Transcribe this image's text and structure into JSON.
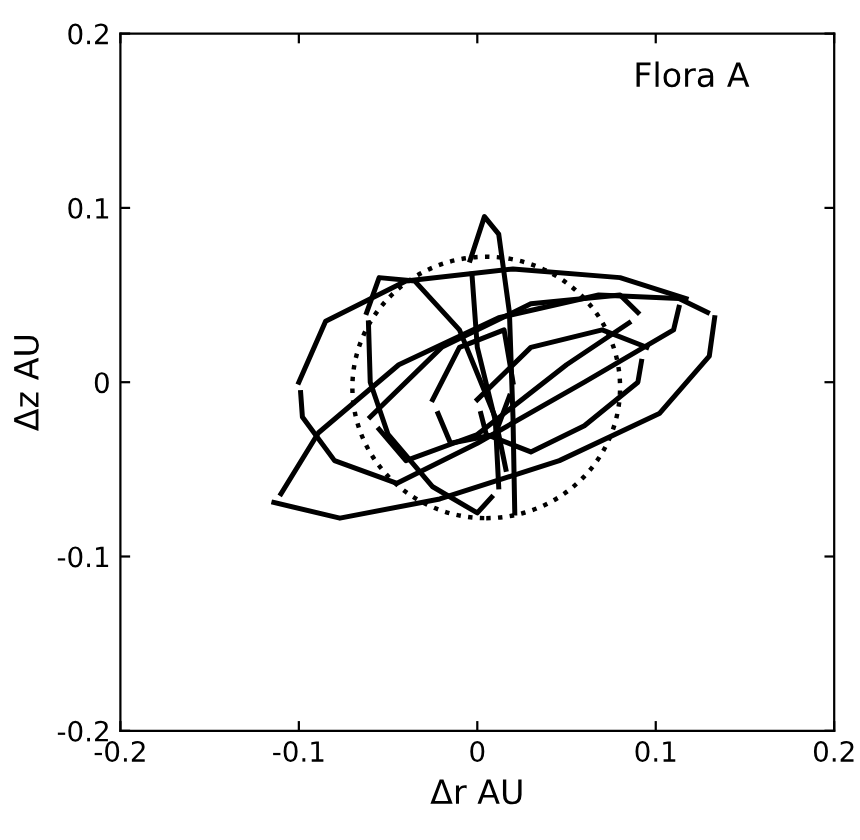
{
  "chart_data": {
    "type": "line",
    "xlabel": "Δr AU",
    "ylabel": "Δz AU",
    "annotations": [
      "Flora A"
    ],
    "xlim": [
      -0.2,
      0.2
    ],
    "ylim": [
      -0.2,
      0.2
    ],
    "xticks": [
      -0.2,
      -0.1,
      0,
      0.1,
      0.2
    ],
    "yticks": [
      -0.2,
      -0.1,
      0,
      0.1,
      0.2
    ],
    "grid": false,
    "legend": false,
    "marker": "none",
    "series": [
      {
        "color": "#000000",
        "line_style": "solid",
        "x": [
          -0.114,
          -0.077,
          -0.021,
          0.046,
          0.102,
          0.13,
          0.133
        ],
        "values": [
          -0.069,
          -0.078,
          -0.067,
          -0.045,
          -0.018,
          0.015,
          0.037
        ]
      },
      {
        "color": "#000000",
        "line_style": "solid",
        "x": [
          -0.11,
          -0.089,
          -0.044,
          0.012,
          0.068,
          0.113,
          0.129
        ],
        "values": [
          -0.064,
          -0.029,
          0.01,
          0.037,
          0.05,
          0.048,
          0.04
        ]
      },
      {
        "color": "#000000",
        "line_style": "solid",
        "x": [
          -0.1,
          -0.085,
          -0.04,
          0.02,
          0.08,
          0.117
        ],
        "values": [
          0.0,
          0.035,
          0.058,
          0.065,
          0.06,
          0.048
        ]
      },
      {
        "color": "#000000",
        "line_style": "solid",
        "x": [
          -0.099,
          -0.098,
          -0.08,
          -0.045,
          0.0,
          0.06,
          0.11,
          0.113
        ],
        "values": [
          -0.006,
          -0.02,
          -0.045,
          -0.058,
          -0.035,
          0.0,
          0.03,
          0.043
        ]
      },
      {
        "color": "#000000",
        "line_style": "solid",
        "x": [
          -0.004,
          0.004,
          0.012,
          0.018,
          0.02,
          0.021
        ],
        "values": [
          0.07,
          0.095,
          0.085,
          0.04,
          -0.02,
          -0.075
        ]
      },
      {
        "color": "#000000",
        "line_style": "solid",
        "x": [
          -0.003,
          0.0,
          0.012,
          0.016
        ],
        "values": [
          0.062,
          0.02,
          -0.03,
          -0.05
        ]
      },
      {
        "color": "#000000",
        "line_style": "solid",
        "x": [
          -0.062,
          -0.055,
          -0.035,
          -0.01,
          0.01,
          0.012
        ],
        "values": [
          0.04,
          0.06,
          0.058,
          0.03,
          -0.02,
          -0.06
        ]
      },
      {
        "color": "#000000",
        "line_style": "solid",
        "x": [
          -0.061,
          -0.06,
          -0.05,
          -0.025,
          0.0,
          0.008
        ],
        "values": [
          0.034,
          0.0,
          -0.03,
          -0.06,
          -0.075,
          -0.066
        ]
      },
      {
        "color": "#000000",
        "line_style": "solid",
        "x": [
          0.0,
          0.03,
          0.07,
          0.095
        ],
        "values": [
          -0.01,
          0.02,
          0.03,
          0.02
        ]
      },
      {
        "color": "#000000",
        "line_style": "solid",
        "x": [
          0.002,
          0.005,
          0.03,
          0.06,
          0.09,
          0.092
        ],
        "values": [
          -0.018,
          -0.03,
          -0.04,
          -0.025,
          0.0,
          0.012
        ]
      },
      {
        "color": "#000000",
        "line_style": "solid",
        "x": [
          -0.025,
          -0.01,
          0.015,
          0.02
        ],
        "values": [
          -0.01,
          0.02,
          0.03,
          0.0
        ]
      },
      {
        "color": "#000000",
        "line_style": "solid",
        "x": [
          -0.022,
          -0.015,
          0.01,
          0.018
        ],
        "values": [
          -0.018,
          -0.035,
          -0.03,
          -0.008
        ]
      },
      {
        "color": "#000000",
        "line_style": "solid",
        "x": [
          -0.06,
          -0.02,
          0.03,
          0.08,
          0.09
        ],
        "values": [
          -0.02,
          0.02,
          0.045,
          0.05,
          0.04
        ]
      },
      {
        "color": "#000000",
        "line_style": "solid",
        "x": [
          -0.055,
          -0.04,
          0.0,
          0.05,
          0.085
        ],
        "values": [
          -0.027,
          -0.045,
          -0.03,
          0.01,
          0.034
        ]
      }
    ]
  }
}
